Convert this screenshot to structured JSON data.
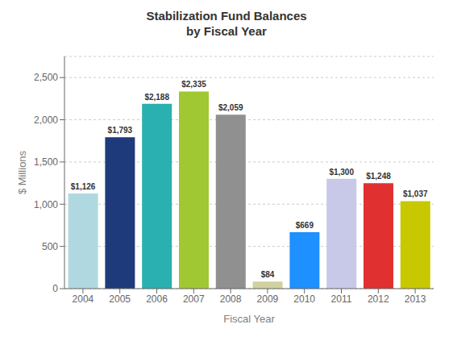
{
  "chart_data": {
    "type": "bar",
    "title": "Stabilization Fund Balances\nby Fiscal Year",
    "xlabel": "Fiscal Year",
    "ylabel": "$ Millions",
    "categories": [
      "2004",
      "2005",
      "2006",
      "2007",
      "2008",
      "2009",
      "2010",
      "2011",
      "2012",
      "2013"
    ],
    "values": [
      1126,
      1793,
      2188,
      2335,
      2059,
      84,
      669,
      1300,
      1248,
      1037
    ],
    "value_labels": [
      "$1,126",
      "$1,793",
      "$2,188",
      "$2,335",
      "$2,059",
      "$84",
      "$669",
      "$1,300",
      "$1,248",
      "$1,037"
    ],
    "data_labels": true,
    "colors": [
      "#b0d8e0",
      "#1e3a7a",
      "#2ab0b0",
      "#a0c832",
      "#909090",
      "#d0d0a0",
      "#1e90ff",
      "#c8c8e8",
      "#e03030",
      "#c8c800"
    ],
    "ylim": [
      0,
      2750
    ],
    "yticks": [
      0,
      500,
      {
        "value": 1000,
        "label": "1,000"
      },
      {
        "value": 1500,
        "label": "1,500"
      },
      {
        "value": 2000,
        "label": "2,000"
      },
      {
        "value": 2500,
        "label": "2,500"
      }
    ],
    "grid": true
  }
}
